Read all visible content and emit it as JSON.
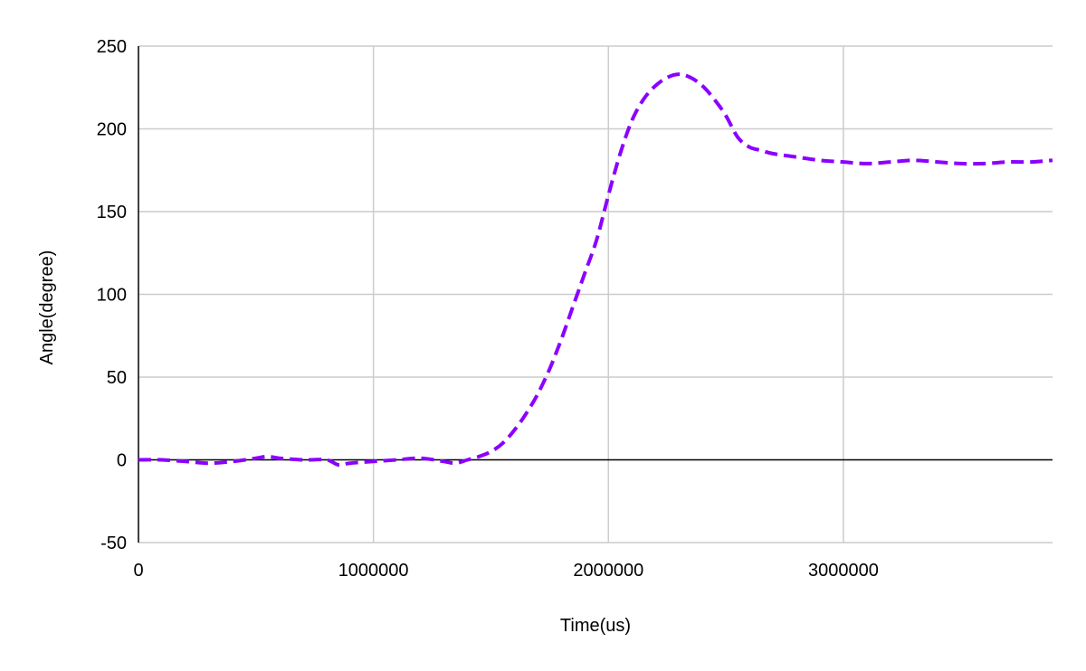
{
  "chart_data": {
    "type": "line",
    "title": "",
    "xlabel": "Time(us)",
    "ylabel": "Angle(degree)",
    "xlim": [
      0,
      3890000
    ],
    "ylim": [
      -50,
      250
    ],
    "x_ticks": [
      0,
      1000000,
      2000000,
      3000000
    ],
    "x_tick_labels": [
      "0",
      "1000000",
      "2000000",
      "3000000"
    ],
    "y_ticks": [
      -50,
      0,
      50,
      100,
      150,
      200,
      250
    ],
    "y_tick_labels": [
      "-50",
      "0",
      "50",
      "100",
      "150",
      "200",
      "250"
    ],
    "grid": true,
    "legend": "none",
    "line_style": "dashed",
    "colors": {
      "series": "#8b00ff",
      "grid": "#cccccc",
      "axis": "#000000"
    },
    "series": [
      {
        "x": [
          0,
          100000,
          200000,
          300000,
          400000,
          500000,
          550000,
          600000,
          700000,
          800000,
          850000,
          900000,
          1000000,
          1100000,
          1200000,
          1300000,
          1350000,
          1400000,
          1450000,
          1500000,
          1550000,
          1600000,
          1650000,
          1700000,
          1750000,
          1800000,
          1850000,
          1900000,
          1950000,
          2000000,
          2050000,
          2100000,
          2150000,
          2200000,
          2250000,
          2300000,
          2350000,
          2400000,
          2450000,
          2500000,
          2550000,
          2600000,
          2650000,
          2700000,
          2800000,
          2900000,
          3000000,
          3100000,
          3200000,
          3300000,
          3400000,
          3500000,
          3600000,
          3700000,
          3800000,
          3890000
        ],
        "y": [
          0,
          0,
          -1,
          -2,
          -1,
          1,
          2,
          1,
          0,
          0,
          -3,
          -2,
          -1,
          0,
          1,
          -1,
          -2,
          0,
          2,
          5,
          10,
          18,
          28,
          40,
          55,
          73,
          93,
          113,
          133,
          160,
          185,
          205,
          218,
          226,
          231,
          233,
          231,
          226,
          218,
          208,
          195,
          189,
          187,
          185,
          183,
          181,
          180,
          179,
          180,
          181,
          180,
          179,
          179,
          180,
          180,
          181
        ]
      }
    ]
  }
}
